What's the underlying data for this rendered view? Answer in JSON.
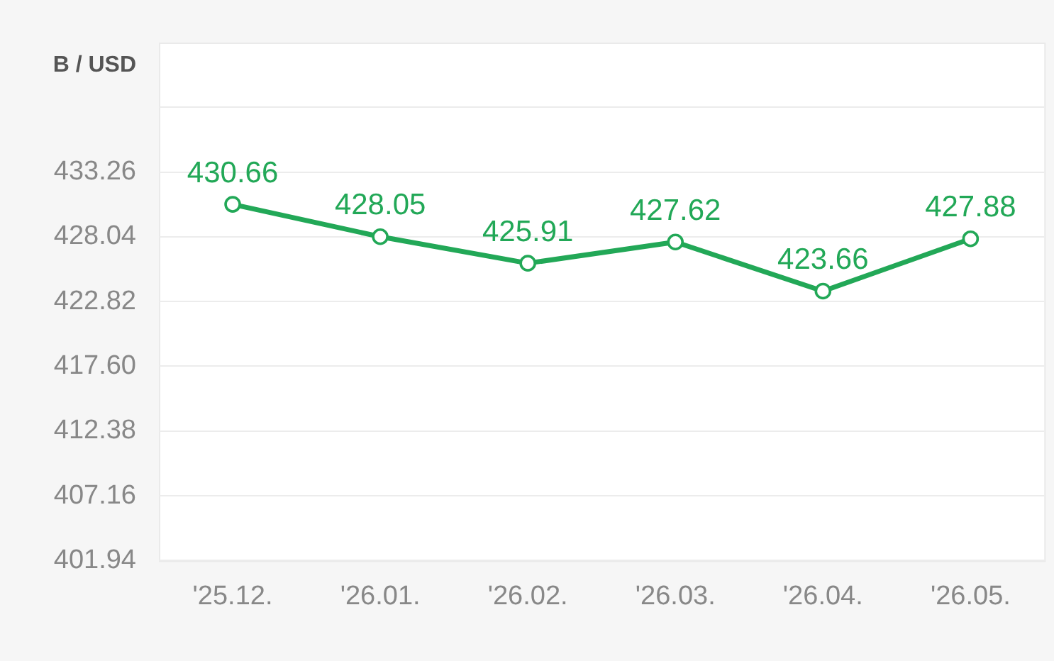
{
  "chart_data": {
    "type": "line",
    "ylabel": "B / USD",
    "categories": [
      "'25.12.",
      "'26.01.",
      "'26.02.",
      "'26.03.",
      "'26.04.",
      "'26.05."
    ],
    "series": [
      {
        "color": "#22a857",
        "values": [
          430.66,
          428.05,
          425.91,
          427.62,
          423.66,
          427.88
        ]
      }
    ],
    "ylim": [
      401.94,
      443.7
    ],
    "yticks": [
      401.94,
      407.16,
      412.38,
      {
        "value": 417.6,
        "label": "417.60"
      },
      422.82,
      428.04,
      433.26,
      {
        "value": 438.48,
        "label": null
      }
    ],
    "grid": "y",
    "legend": false,
    "marker": "circle",
    "line_style": "solid",
    "data_labels": true
  }
}
